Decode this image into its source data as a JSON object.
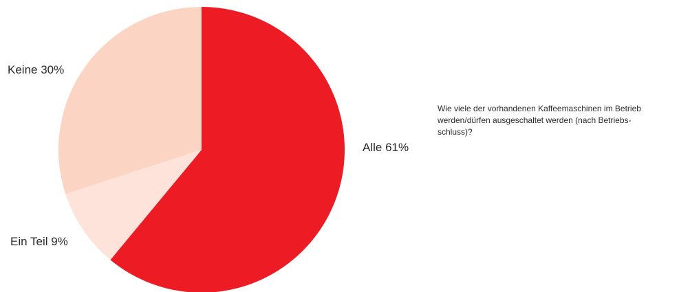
{
  "chart_data": {
    "type": "pie",
    "start": "12 o'clock",
    "direction": "clockwise",
    "slices": [
      {
        "label": "Alle 61%",
        "name": "Alle",
        "value": 61,
        "color": "#ED1C24"
      },
      {
        "label": "Ein Teil 9%",
        "name": "Ein Teil",
        "value": 9,
        "color": "#FDE3DA"
      },
      {
        "label": "Keine 30%",
        "name": "Keine",
        "value": 30,
        "color": "#FBD4C4"
      }
    ]
  },
  "question": {
    "lines": [
      "Wie viele der vorhandenen Kaffeemaschinen im Betrieb",
      "werden/dürfen ausgeschaltet werden (nach Betriebs-",
      "schluss)?"
    ]
  }
}
